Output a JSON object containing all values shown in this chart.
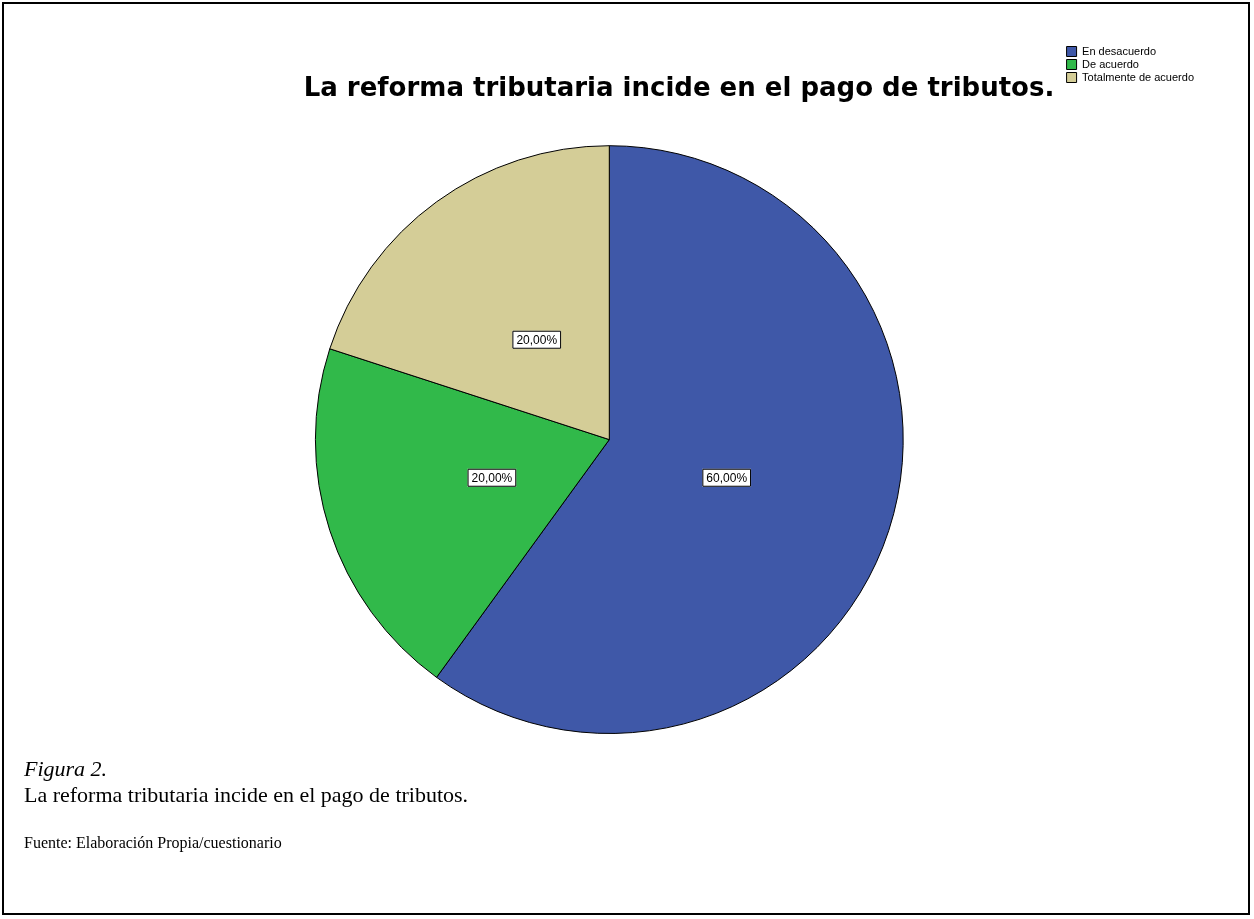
{
  "chart_data": {
    "type": "pie",
    "title": "La reforma tributaria incide en el pago de tributos.",
    "categories": [
      "En desacuerdo",
      "De acuerdo",
      "Totalmente de acuerdo"
    ],
    "values": [
      60,
      20,
      20
    ],
    "colors": [
      "#3f58a8",
      "#31b94a",
      "#d4cd97"
    ],
    "value_labels": [
      "60,00%",
      "20,00%",
      "20,00%"
    ],
    "legend": "top right",
    "annotations": [
      "Figura 2.",
      "La reforma tributaria incide en el pago de tributos.",
      "Fuente: Elaboración Propia/cuestionario"
    ]
  }
}
